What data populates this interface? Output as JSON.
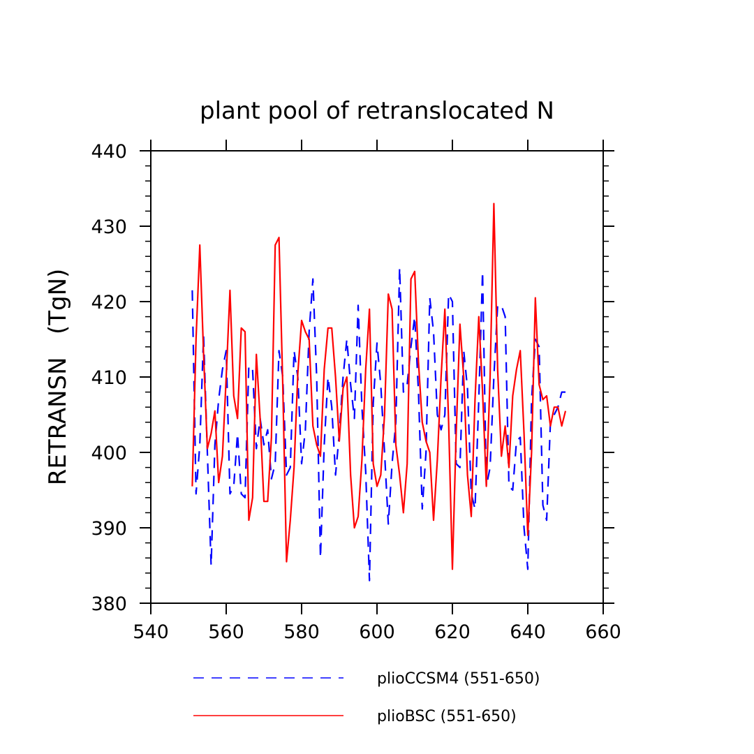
{
  "chart_data": {
    "type": "line",
    "title": "plant pool of retranslocated N",
    "xlabel": "",
    "ylabel": "RETRANSN   (TgN)",
    "xlim": [
      540,
      660
    ],
    "ylim": [
      380,
      440
    ],
    "xticks": [
      540,
      560,
      580,
      600,
      620,
      640,
      660
    ],
    "yticks": [
      380,
      390,
      400,
      410,
      420,
      430,
      440
    ],
    "grid": false,
    "legend_position": "bottom",
    "series": [
      {
        "name": "plioCCSM4 (551-650)",
        "color": "#0000ff",
        "dash": "dashed",
        "x": [
          551,
          552,
          553,
          554,
          555,
          556,
          557,
          558,
          559,
          560,
          561,
          562,
          563,
          564,
          565,
          566,
          567,
          568,
          569,
          570,
          571,
          572,
          573,
          574,
          575,
          576,
          577,
          578,
          579,
          580,
          581,
          582,
          583,
          584,
          585,
          586,
          587,
          588,
          589,
          590,
          591,
          592,
          593,
          594,
          595,
          596,
          597,
          598,
          599,
          600,
          601,
          602,
          603,
          604,
          605,
          606,
          607,
          608,
          609,
          610,
          611,
          612,
          613,
          614,
          615,
          616,
          617,
          618,
          619,
          620,
          621,
          622,
          623,
          624,
          625,
          626,
          627,
          628,
          629,
          630,
          631,
          632,
          633,
          634,
          635,
          636,
          637,
          638,
          639,
          640,
          641,
          642,
          643,
          644,
          645,
          646,
          647,
          648,
          649,
          650
        ],
        "values": [
          421.5,
          394.5,
          401.0,
          415.5,
          400.0,
          385.0,
          401.0,
          407.0,
          411.0,
          413.5,
          394.5,
          395.5,
          402.5,
          394.5,
          394.0,
          411.5,
          411.0,
          400.5,
          404.5,
          401.0,
          403.0,
          396.5,
          398.5,
          413.5,
          410.0,
          397.0,
          398.0,
          413.5,
          410.0,
          398.5,
          403.0,
          416.0,
          423.0,
          410.0,
          386.0,
          401.0,
          410.0,
          406.0,
          397.0,
          402.5,
          410.0,
          415.0,
          409.0,
          404.5,
          419.5,
          406.0,
          397.5,
          383.0,
          406.5,
          414.5,
          409.0,
          400.0,
          390.5,
          398.5,
          404.0,
          424.5,
          408.0,
          409.0,
          414.0,
          418.0,
          408.0,
          392.5,
          400.0,
          420.5,
          416.0,
          405.0,
          403.0,
          405.0,
          421.0,
          420.0,
          398.5,
          398.0,
          413.5,
          408.5,
          394.5,
          392.5,
          407.0,
          424.0,
          395.5,
          398.0,
          410.0,
          419.5,
          419.5,
          418.0,
          395.5,
          395.0,
          401.5,
          402.0,
          390.0,
          384.5,
          407.0,
          415.0,
          414.0,
          393.0,
          391.0,
          404.0,
          405.0,
          406.0,
          408.0,
          408.0
        ]
      },
      {
        "name": "plioBSC (551-650)",
        "color": "#ff0000",
        "dash": "solid",
        "x": [
          551,
          552,
          553,
          554,
          555,
          556,
          557,
          558,
          559,
          560,
          561,
          562,
          563,
          564,
          565,
          566,
          567,
          568,
          569,
          570,
          571,
          572,
          573,
          574,
          575,
          576,
          577,
          578,
          579,
          580,
          581,
          582,
          583,
          584,
          585,
          586,
          587,
          588,
          589,
          590,
          591,
          592,
          593,
          594,
          595,
          596,
          597,
          598,
          599,
          600,
          601,
          602,
          603,
          604,
          605,
          606,
          607,
          608,
          609,
          610,
          611,
          612,
          613,
          614,
          615,
          616,
          617,
          618,
          619,
          620,
          621,
          622,
          623,
          624,
          625,
          626,
          627,
          628,
          629,
          630,
          631,
          632,
          633,
          634,
          635,
          636,
          637,
          638,
          639,
          640,
          641,
          642,
          643,
          644,
          645,
          646,
          647,
          648,
          649,
          650
        ],
        "values": [
          395.5,
          415.0,
          427.5,
          413.0,
          400.5,
          402.5,
          405.5,
          396.0,
          399.5,
          410.0,
          421.5,
          407.5,
          404.5,
          416.5,
          416.0,
          391.0,
          394.0,
          413.0,
          404.5,
          393.5,
          393.5,
          402.0,
          427.5,
          428.5,
          409.0,
          385.5,
          391.0,
          398.0,
          410.5,
          417.5,
          416.0,
          415.0,
          403.5,
          401.0,
          399.5,
          411.0,
          416.5,
          416.5,
          410.0,
          401.5,
          408.5,
          410.0,
          397.0,
          390.0,
          391.5,
          399.0,
          411.0,
          419.0,
          398.5,
          395.5,
          397.0,
          405.0,
          421.0,
          419.0,
          401.0,
          397.0,
          392.0,
          398.5,
          423.0,
          424.0,
          412.0,
          404.0,
          401.5,
          400.0,
          391.0,
          399.0,
          410.0,
          419.0,
          404.0,
          384.5,
          402.5,
          417.0,
          410.0,
          397.0,
          391.5,
          407.0,
          418.0,
          408.0,
          395.5,
          410.0,
          433.0,
          411.0,
          399.5,
          403.5,
          398.0,
          407.5,
          411.0,
          413.5,
          402.5,
          389.0,
          400.0,
          420.5,
          409.0,
          407.0,
          407.5,
          403.5,
          406.0,
          406.0,
          403.5,
          405.5
        ]
      }
    ]
  }
}
